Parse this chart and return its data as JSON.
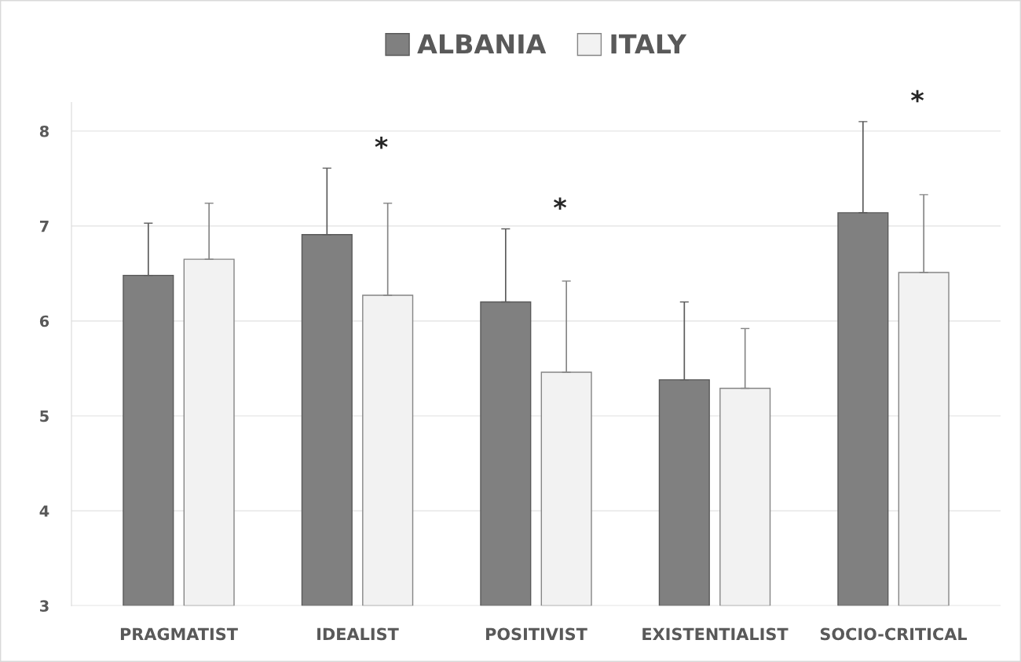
{
  "chart_data": {
    "type": "bar",
    "categories": [
      "PRAGMATIST",
      "IDEALIST",
      "POSITIVIST",
      "EXISTENTIALIST",
      "SOCIO-CRITICAL"
    ],
    "series": [
      {
        "name": "ALBANIA",
        "color": "#808080",
        "values": [
          6.48,
          6.91,
          6.2,
          5.38,
          7.14
        ],
        "errors": [
          [
            6.48,
            7.03
          ],
          [
            6.91,
            7.61
          ],
          [
            6.2,
            6.97
          ],
          [
            5.38,
            6.2
          ],
          [
            7.14,
            8.1
          ]
        ]
      },
      {
        "name": "ITALY",
        "color": "#f2f2f2",
        "values": [
          6.65,
          6.27,
          5.46,
          5.29,
          6.51
        ],
        "errors": [
          [
            6.65,
            7.24
          ],
          [
            6.27,
            7.24
          ],
          [
            5.46,
            6.42
          ],
          [
            5.29,
            5.92
          ],
          [
            6.51,
            7.33
          ]
        ]
      }
    ],
    "ylim": [
      3,
      8.3
    ],
    "yticks": [
      3,
      4,
      5,
      6,
      7,
      8
    ],
    "grid": "y",
    "legend": "top",
    "annotations": [
      "*",
      "*",
      "*"
    ]
  }
}
